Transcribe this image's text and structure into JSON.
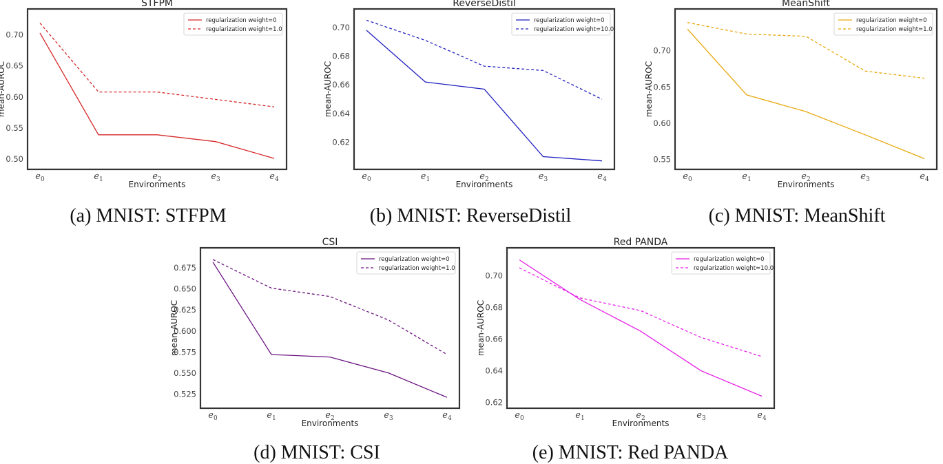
{
  "chart_data": [
    {
      "type": "line",
      "title": "STFPM",
      "xlabel": "Environments",
      "ylabel": "mean-AUROC",
      "categories": [
        "e0",
        "e1",
        "e2",
        "e3",
        "e4"
      ],
      "ylim": [
        0.49,
        0.735
      ],
      "yticks": [
        "0.50",
        "0.55",
        "0.60",
        "0.65",
        "0.70"
      ],
      "color": "#d62728",
      "legend_position": "top-right",
      "series": [
        {
          "name": "regularization weight=0",
          "style": "solid",
          "values": [
            0.703,
            0.539,
            0.539,
            0.528,
            0.501
          ]
        },
        {
          "name": "regularization weight=1.0",
          "style": "dashed",
          "values": [
            0.719,
            0.608,
            0.608,
            0.596,
            0.584
          ]
        }
      ],
      "caption": "(a) MNIST: STFPM"
    },
    {
      "type": "line",
      "title": "ReverseDistil",
      "xlabel": "Environments",
      "ylabel": "mean-AUROC",
      "categories": [
        "e0",
        "e1",
        "e2",
        "e3",
        "e4"
      ],
      "ylim": [
        0.604,
        0.71
      ],
      "yticks": [
        "0.62",
        "0.64",
        "0.66",
        "0.68",
        "0.70"
      ],
      "color": "#1f1fbf",
      "legend_position": "top-right",
      "series": [
        {
          "name": "regularization weight=0",
          "style": "solid",
          "values": [
            0.698,
            0.662,
            0.657,
            0.61,
            0.607
          ]
        },
        {
          "name": "regularization weight=10.0",
          "style": "dashed",
          "values": [
            0.705,
            0.691,
            0.673,
            0.67,
            0.65
          ]
        }
      ],
      "caption": "(b) MNIST: ReverseDistil"
    },
    {
      "type": "line",
      "title": "MeanShift",
      "xlabel": "Environments",
      "ylabel": "mean-AUROC",
      "categories": [
        "e0",
        "e1",
        "e2",
        "e3",
        "e4"
      ],
      "ylim": [
        0.542,
        0.752
      ],
      "yticks": [
        "0.55",
        "0.60",
        "0.65",
        "0.70"
      ],
      "color": "#e8a80e",
      "legend_position": "top-right",
      "series": [
        {
          "name": "regularization weight=0",
          "style": "solid",
          "values": [
            0.73,
            0.639,
            0.616,
            0.584,
            0.551
          ]
        },
        {
          "name": "regularization weight=1.0",
          "style": "dashed",
          "values": [
            0.739,
            0.723,
            0.72,
            0.672,
            0.662
          ]
        }
      ],
      "caption": "(c) MNIST: MeanShift"
    },
    {
      "type": "line",
      "title": "CSI",
      "xlabel": "Environments",
      "ylabel": "mean-AUROC",
      "categories": [
        "e0",
        "e1",
        "e2",
        "e3",
        "e4"
      ],
      "ylim": [
        0.513,
        0.694
      ],
      "yticks": [
        "0.525",
        "0.550",
        "0.575",
        "0.600",
        "0.625",
        "0.650",
        "0.675"
      ],
      "color": "#6b1480",
      "legend_position": "top-right",
      "series": [
        {
          "name": "regularization weight=0",
          "style": "solid",
          "values": [
            0.682,
            0.572,
            0.569,
            0.55,
            0.521
          ]
        },
        {
          "name": "regularization weight=1.0",
          "style": "dashed",
          "values": [
            0.685,
            0.651,
            0.641,
            0.613,
            0.572
          ]
        }
      ],
      "caption": "(d) MNIST: CSI"
    },
    {
      "type": "line",
      "title": "Red PANDA",
      "xlabel": "Environments",
      "ylabel": "mean-AUROC",
      "categories": [
        "e0",
        "e1",
        "e2",
        "e3",
        "e4"
      ],
      "ylim": [
        0.619,
        0.715
      ],
      "yticks": [
        "0.62",
        "0.64",
        "0.66",
        "0.68",
        "0.70"
      ],
      "color": "#e61ee6",
      "legend_position": "top-right",
      "series": [
        {
          "name": "regularization weight=0",
          "style": "solid",
          "values": [
            0.71,
            0.685,
            0.665,
            0.64,
            0.624
          ]
        },
        {
          "name": "regularization weight=10.0",
          "style": "dashed",
          "values": [
            0.705,
            0.686,
            0.678,
            0.661,
            0.649
          ]
        }
      ],
      "caption": "(e) MNIST: Red PANDA"
    }
  ]
}
